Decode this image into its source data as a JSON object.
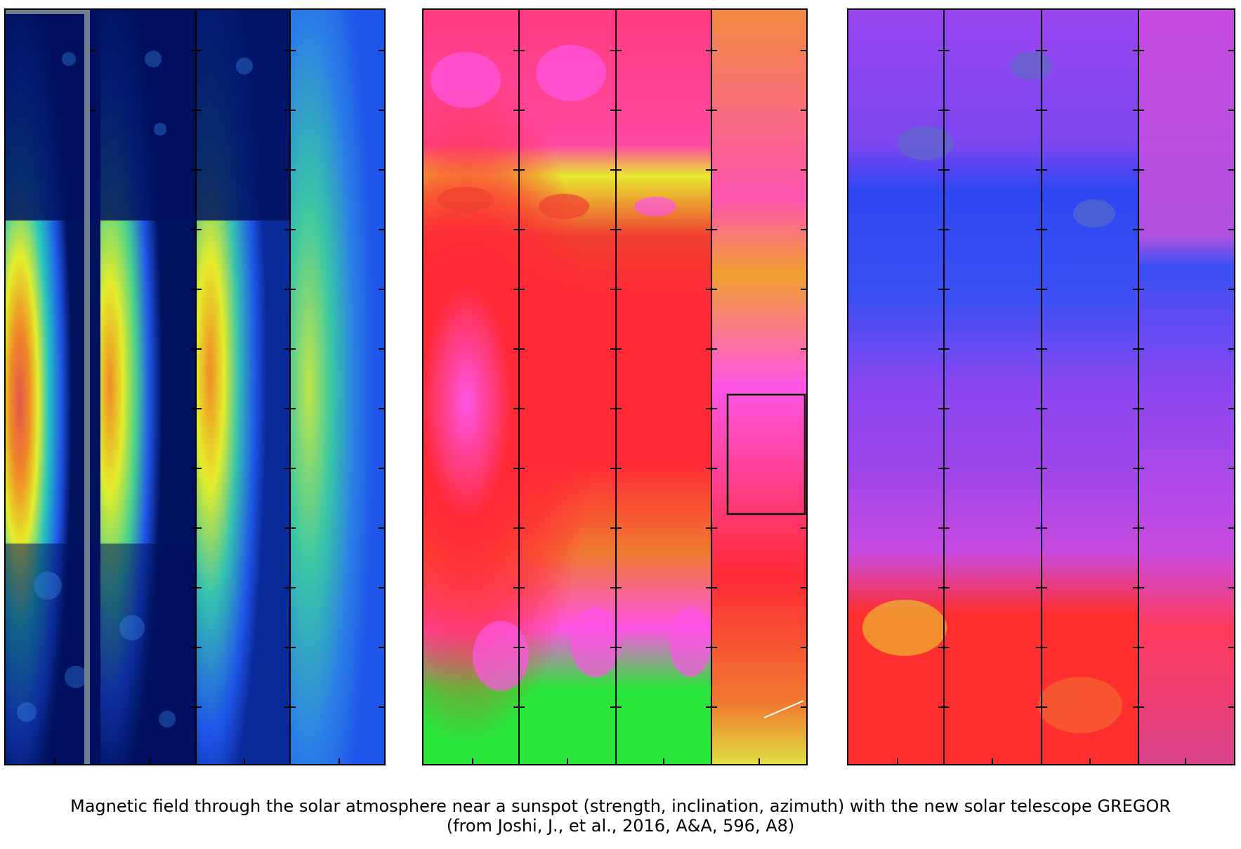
{
  "figure": {
    "groups": [
      {
        "quantity": "strength",
        "panels": 4,
        "colormap": "jet"
      },
      {
        "quantity": "inclination",
        "panels": 4,
        "colormap": "hsv-warm"
      },
      {
        "quantity": "azimuth",
        "panels": 4,
        "colormap": "hsv-cool"
      }
    ]
  },
  "caption": {
    "line1": "Magnetic field through the solar atmosphere near a sunspot (strength, inclination, azimuth) with the new solar telescope GREGOR",
    "line2": "(from Joshi, J., et al., 2016, A&A, 596, A8)"
  },
  "colors": {
    "jet_dark": "#00115e",
    "jet_blue": "#1f55e8",
    "jet_cyan": "#26c7c0",
    "jet_yellow": "#e4ec2b",
    "jet_orange": "#f08a26",
    "inc_red": "#ff2a35",
    "inc_magenta": "#ff55e6",
    "inc_yellow": "#f3f126",
    "inc_green": "#2ae63a",
    "azi_violet": "#9a46f0",
    "azi_blue": "#2e46f2",
    "azi_red": "#ff2f2f",
    "azi_magenta": "#c84ae0"
  }
}
